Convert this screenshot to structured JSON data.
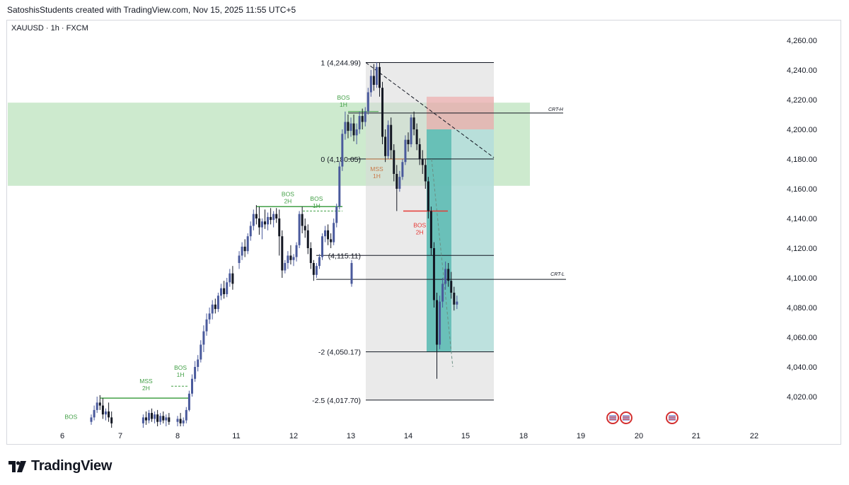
{
  "header": {
    "text": "SatoshisStudents created with TradingView.com, Nov 15, 2025 11:55 UTC+5"
  },
  "symbol": {
    "text": "XAUUSD · 1h · FXCM"
  },
  "footer": {
    "brand": "TradingView"
  },
  "colors": {
    "bull": "#4a5a9c",
    "bear": "#131722",
    "zone_green": "#b2dfb4",
    "fib_box": "#d9d9d9",
    "target_teal": "#26a69a",
    "stop_red": "#ef9a9a",
    "bos_green": "#43a047",
    "bos_red": "#e53935",
    "mss_orange": "#c97a4a"
  },
  "chart_data": {
    "type": "candlestick",
    "symbol": "XAUUSD",
    "timeframe": "1h",
    "exchange": "FXCM",
    "x_ticks": [
      "6",
      "7",
      "8",
      "11",
      "12",
      "13",
      "14",
      "15",
      "18",
      "19",
      "20",
      "21",
      "22"
    ],
    "y_ticks": [
      "4,020.00",
      "4,040.00",
      "4,060.00",
      "4,080.00",
      "4,100.00",
      "4,120.00",
      "4,140.00",
      "4,160.00",
      "4,180.00",
      "4,200.00",
      "4,220.00",
      "4,240.00",
      "4,260.00"
    ],
    "ylim": [
      4010,
      4270
    ],
    "xlim": [
      5.3,
      22.7
    ],
    "candles": [
      {
        "t": 6.5,
        "o": 4003,
        "h": 4008,
        "c": 4006,
        "l": 4001
      },
      {
        "t": 6.55,
        "o": 4006,
        "h": 4014,
        "c": 4011,
        "l": 4004
      },
      {
        "t": 6.6,
        "o": 4011,
        "h": 4020,
        "c": 4016,
        "l": 4009
      },
      {
        "t": 6.65,
        "o": 4016,
        "h": 4021,
        "c": 4014,
        "l": 4011
      },
      {
        "t": 6.7,
        "o": 4014,
        "h": 4019,
        "c": 4008,
        "l": 4005
      },
      {
        "t": 6.75,
        "o": 4008,
        "h": 4012,
        "c": 4010,
        "l": 4004
      },
      {
        "t": 6.8,
        "o": 4010,
        "h": 4016,
        "c": 4006,
        "l": 4003
      },
      {
        "t": 6.85,
        "o": 4006,
        "h": 4010,
        "c": 4002,
        "l": 3999
      },
      {
        "t": 7.4,
        "o": 4002,
        "h": 4008,
        "c": 4006,
        "l": 3999
      },
      {
        "t": 7.45,
        "o": 4006,
        "h": 4010,
        "c": 4004,
        "l": 4001
      },
      {
        "t": 7.5,
        "o": 4004,
        "h": 4011,
        "c": 4009,
        "l": 4002
      },
      {
        "t": 7.55,
        "o": 4009,
        "h": 4012,
        "c": 4005,
        "l": 4003
      },
      {
        "t": 7.6,
        "o": 4005,
        "h": 4010,
        "c": 4008,
        "l": 4002
      },
      {
        "t": 7.65,
        "o": 4008,
        "h": 4011,
        "c": 4003,
        "l": 4000
      },
      {
        "t": 7.7,
        "o": 4003,
        "h": 4009,
        "c": 4007,
        "l": 4001
      },
      {
        "t": 7.75,
        "o": 4007,
        "h": 4010,
        "c": 4004,
        "l": 4002
      },
      {
        "t": 7.8,
        "o": 4004,
        "h": 4008,
        "c": 4006,
        "l": 4000
      },
      {
        "t": 7.85,
        "o": 4006,
        "h": 4009,
        "c": 4003,
        "l": 4001
      },
      {
        "t": 8.0,
        "o": 4003,
        "h": 4007,
        "c": 4005,
        "l": 4000
      },
      {
        "t": 8.05,
        "o": 4005,
        "h": 4009,
        "c": 4002,
        "l": 4000
      },
      {
        "t": 8.1,
        "o": 4002,
        "h": 4006,
        "c": 4004,
        "l": 4000
      },
      {
        "t": 8.15,
        "o": 4004,
        "h": 4013,
        "c": 4011,
        "l": 4002
      },
      {
        "t": 8.2,
        "o": 4011,
        "h": 4024,
        "c": 4022,
        "l": 4010
      },
      {
        "t": 8.25,
        "o": 4022,
        "h": 4035,
        "c": 4032,
        "l": 4020
      },
      {
        "t": 8.3,
        "o": 4032,
        "h": 4044,
        "c": 4040,
        "l": 4030
      },
      {
        "t": 8.35,
        "o": 4040,
        "h": 4048,
        "c": 4045,
        "l": 4037
      },
      {
        "t": 8.4,
        "o": 4045,
        "h": 4058,
        "c": 4055,
        "l": 4043
      },
      {
        "t": 8.45,
        "o": 4055,
        "h": 4068,
        "c": 4064,
        "l": 4050
      },
      {
        "t": 8.5,
        "o": 4064,
        "h": 4076,
        "c": 4072,
        "l": 4061
      },
      {
        "t": 8.55,
        "o": 4072,
        "h": 4080,
        "c": 4076,
        "l": 4069
      },
      {
        "t": 8.6,
        "o": 4076,
        "h": 4085,
        "c": 4082,
        "l": 4072
      },
      {
        "t": 8.65,
        "o": 4082,
        "h": 4086,
        "c": 4079,
        "l": 4076
      },
      {
        "t": 8.7,
        "o": 4079,
        "h": 4090,
        "c": 4088,
        "l": 4077
      },
      {
        "t": 8.75,
        "o": 4088,
        "h": 4096,
        "c": 4093,
        "l": 4085
      },
      {
        "t": 8.8,
        "o": 4093,
        "h": 4098,
        "c": 4089,
        "l": 4086
      },
      {
        "t": 8.85,
        "o": 4089,
        "h": 4100,
        "c": 4097,
        "l": 4087
      },
      {
        "t": 8.9,
        "o": 4097,
        "h": 4106,
        "c": 4103,
        "l": 4094
      },
      {
        "t": 8.95,
        "o": 4103,
        "h": 4108,
        "c": 4096,
        "l": 4092
      },
      {
        "t": 9.0,
        "o": 4096,
        "h": 4112,
        "c": 4110,
        "l": 4094
      },
      {
        "t": 9.05,
        "o": 4110,
        "h": 4118,
        "c": 4115,
        "l": 4106
      },
      {
        "t": 9.1,
        "o": 4115,
        "h": 4124,
        "c": 4121,
        "l": 4112
      },
      {
        "t": 9.15,
        "o": 4121,
        "h": 4126,
        "c": 4118,
        "l": 4114
      },
      {
        "t": 9.2,
        "o": 4118,
        "h": 4130,
        "c": 4128,
        "l": 4116
      },
      {
        "t": 9.25,
        "o": 4128,
        "h": 4138,
        "c": 4135,
        "l": 4125
      },
      {
        "t": 9.3,
        "o": 4135,
        "h": 4146,
        "c": 4143,
        "l": 4132
      },
      {
        "t": 9.35,
        "o": 4143,
        "h": 4149,
        "c": 4140,
        "l": 4136
      },
      {
        "t": 9.4,
        "o": 4140,
        "h": 4148,
        "c": 4134,
        "l": 4129
      },
      {
        "t": 9.45,
        "o": 4134,
        "h": 4140,
        "c": 4138,
        "l": 4126
      },
      {
        "t": 9.5,
        "o": 4138,
        "h": 4146,
        "c": 4136,
        "l": 4133
      },
      {
        "t": 9.55,
        "o": 4136,
        "h": 4144,
        "c": 4141,
        "l": 4132
      },
      {
        "t": 9.6,
        "o": 4141,
        "h": 4147,
        "c": 4139,
        "l": 4136
      },
      {
        "t": 9.65,
        "o": 4139,
        "h": 4145,
        "c": 4143,
        "l": 4134
      },
      {
        "t": 9.7,
        "o": 4143,
        "h": 4147,
        "c": 4140,
        "l": 4137
      },
      {
        "t": 9.75,
        "o": 4140,
        "h": 4146,
        "c": 4128,
        "l": 4115
      },
      {
        "t": 9.8,
        "o": 4128,
        "h": 4132,
        "c": 4105,
        "l": 4100
      },
      {
        "t": 9.85,
        "o": 4105,
        "h": 4112,
        "c": 4110,
        "l": 4103
      },
      {
        "t": 9.9,
        "o": 4110,
        "h": 4118,
        "c": 4115,
        "l": 4106
      },
      {
        "t": 9.95,
        "o": 4115,
        "h": 4122,
        "c": 4112,
        "l": 4109
      },
      {
        "t": 10.0,
        "o": 4112,
        "h": 4116,
        "c": 4114,
        "l": 4108
      },
      {
        "t": 10.05,
        "o": 4114,
        "h": 4124,
        "c": 4122,
        "l": 4111
      },
      {
        "t": 10.1,
        "o": 4122,
        "h": 4145,
        "c": 4143,
        "l": 4120
      },
      {
        "t": 10.15,
        "o": 4143,
        "h": 4148,
        "c": 4135,
        "l": 4130
      },
      {
        "t": 10.2,
        "o": 4135,
        "h": 4140,
        "c": 4132,
        "l": 4127
      },
      {
        "t": 10.25,
        "o": 4132,
        "h": 4136,
        "c": 4120,
        "l": 4116
      },
      {
        "t": 10.3,
        "o": 4120,
        "h": 4124,
        "c": 4110,
        "l": 4106
      },
      {
        "t": 10.35,
        "o": 4110,
        "h": 4112,
        "c": 4102,
        "l": 4098
      },
      {
        "t": 10.4,
        "o": 4102,
        "h": 4110,
        "c": 4108,
        "l": 4100
      },
      {
        "t": 10.45,
        "o": 4108,
        "h": 4116,
        "c": 4114,
        "l": 4106
      },
      {
        "t": 10.5,
        "o": 4114,
        "h": 4130,
        "c": 4128,
        "l": 4112
      },
      {
        "t": 10.55,
        "o": 4128,
        "h": 4135,
        "c": 4132,
        "l": 4124
      },
      {
        "t": 10.6,
        "o": 4132,
        "h": 4136,
        "c": 4126,
        "l": 4122
      },
      {
        "t": 10.65,
        "o": 4126,
        "h": 4130,
        "c": 4124,
        "l": 4120
      },
      {
        "t": 10.7,
        "o": 4124,
        "h": 4140,
        "c": 4137,
        "l": 4122
      },
      {
        "t": 10.75,
        "o": 4137,
        "h": 4150,
        "c": 4148,
        "l": 4134
      },
      {
        "t": 10.8,
        "o": 4148,
        "h": 4178,
        "c": 4175,
        "l": 4146
      },
      {
        "t": 10.85,
        "o": 4175,
        "h": 4200,
        "c": 4197,
        "l": 4172
      },
      {
        "t": 10.9,
        "o": 4197,
        "h": 4212,
        "c": 4205,
        "l": 4193
      },
      {
        "t": 10.95,
        "o": 4205,
        "h": 4210,
        "c": 4199,
        "l": 4194
      },
      {
        "t": 11.0,
        "o": 4199,
        "h": 4208,
        "c": 4204,
        "l": 4195
      },
      {
        "t": 11.05,
        "o": 4204,
        "h": 4210,
        "c": 4196,
        "l": 4192
      },
      {
        "t": 11.1,
        "o": 4196,
        "h": 4204,
        "c": 4200,
        "l": 4190
      },
      {
        "t": 11.15,
        "o": 4200,
        "h": 4212,
        "c": 4209,
        "l": 4197
      },
      {
        "t": 11.2,
        "o": 4209,
        "h": 4214,
        "c": 4205,
        "l": 4200
      },
      {
        "t": 11.25,
        "o": 4205,
        "h": 4215,
        "c": 4212,
        "l": 4202
      },
      {
        "t": 11.3,
        "o": 4212,
        "h": 4228,
        "c": 4225,
        "l": 4210
      },
      {
        "t": 11.35,
        "o": 4225,
        "h": 4240,
        "c": 4236,
        "l": 4222
      },
      {
        "t": 11.4,
        "o": 4236,
        "h": 4244,
        "c": 4230,
        "l": 4226
      },
      {
        "t": 11.45,
        "o": 4230,
        "h": 4245,
        "c": 4242,
        "l": 4228
      },
      {
        "t": 11.5,
        "o": 4242,
        "h": 4245,
        "c": 4228,
        "l": 4222
      },
      {
        "t": 11.55,
        "o": 4228,
        "h": 4232,
        "c": 4195,
        "l": 4190
      },
      {
        "t": 11.6,
        "o": 4195,
        "h": 4200,
        "c": 4182,
        "l": 4178
      },
      {
        "t": 11.65,
        "o": 4182,
        "h": 4206,
        "c": 4203,
        "l": 4180
      },
      {
        "t": 11.7,
        "o": 4203,
        "h": 4208,
        "c": 4186,
        "l": 4180
      },
      {
        "t": 11.75,
        "o": 4186,
        "h": 4190,
        "c": 4170,
        "l": 4165
      },
      {
        "t": 11.8,
        "o": 4170,
        "h": 4176,
        "c": 4160,
        "l": 4145
      },
      {
        "t": 11.85,
        "o": 4160,
        "h": 4172,
        "c": 4168,
        "l": 4158
      },
      {
        "t": 11.9,
        "o": 4168,
        "h": 4180,
        "c": 4178,
        "l": 4166
      },
      {
        "t": 11.95,
        "o": 4178,
        "h": 4196,
        "c": 4193,
        "l": 4176
      },
      {
        "t": 12.0,
        "o": 4193,
        "h": 4198,
        "c": 4190,
        "l": 4185
      },
      {
        "t": 12.05,
        "o": 4190,
        "h": 4210,
        "c": 4208,
        "l": 4188
      },
      {
        "t": 12.1,
        "o": 4208,
        "h": 4212,
        "c": 4200,
        "l": 4196
      },
      {
        "t": 12.15,
        "o": 4200,
        "h": 4204,
        "c": 4190,
        "l": 4186
      },
      {
        "t": 12.2,
        "o": 4190,
        "h": 4194,
        "c": 4180,
        "l": 4176
      },
      {
        "t": 12.25,
        "o": 4180,
        "h": 4186,
        "c": 4176,
        "l": 4170
      },
      {
        "t": 12.3,
        "o": 4176,
        "h": 4180,
        "c": 4165,
        "l": 4160
      },
      {
        "t": 12.35,
        "o": 4165,
        "h": 4168,
        "c": 4145,
        "l": 4140
      },
      {
        "t": 12.4,
        "o": 4145,
        "h": 4148,
        "c": 4120,
        "l": 4115
      },
      {
        "t": 12.45,
        "o": 4120,
        "h": 4124,
        "c": 4085,
        "l": 4080
      },
      {
        "t": 12.5,
        "o": 4085,
        "h": 4090,
        "c": 4055,
        "l": 4032
      },
      {
        "t": 12.55,
        "o": 4055,
        "h": 4088,
        "c": 4084,
        "l": 4052
      },
      {
        "t": 12.6,
        "o": 4084,
        "h": 4100,
        "c": 4096,
        "l": 4080
      },
      {
        "t": 12.65,
        "o": 4096,
        "h": 4111,
        "c": 4106,
        "l": 4092
      },
      {
        "t": 12.7,
        "o": 4106,
        "h": 4110,
        "c": 4098,
        "l": 4094
      },
      {
        "t": 12.75,
        "o": 4098,
        "h": 4104,
        "c": 4090,
        "l": 4086
      },
      {
        "t": 12.8,
        "o": 4090,
        "h": 4094,
        "c": 4082,
        "l": 4078
      },
      {
        "t": 12.85,
        "o": 4082,
        "h": 4088,
        "c": 4084,
        "l": 4079
      }
    ],
    "fib_levels": [
      {
        "label": "1 (4,244.99)",
        "price": 4244.99
      },
      {
        "label": "0 (4,180.05)",
        "price": 4180.05
      },
      {
        "label": "(4,115.11)",
        "price": 4115.11
      },
      {
        "label": "-2 (4,050.17)",
        "price": 4050.17
      },
      {
        "label": "-2.5 (4,017.70)",
        "price": 4017.7
      }
    ],
    "crt_labels": [
      {
        "label": "CRT-H",
        "price": 4211
      },
      {
        "label": "CRT-L",
        "price": 4099
      }
    ],
    "structure_labels": [
      {
        "text": "BOS",
        "sub": "",
        "t": 6.15,
        "price": 4005,
        "color": "green"
      },
      {
        "text": "MSS",
        "sub": "2H",
        "t": 7.45,
        "price": 4029,
        "color": "green"
      },
      {
        "text": "BOS",
        "sub": "1H",
        "t": 8.05,
        "price": 4038,
        "color": "green"
      },
      {
        "text": "BOS",
        "sub": "2H",
        "t": 9.9,
        "price": 4155,
        "color": "green"
      },
      {
        "text": "BOS",
        "sub": "1H",
        "t": 10.4,
        "price": 4152,
        "color": "green"
      },
      {
        "text": "BOS",
        "sub": "1H",
        "t": 10.87,
        "price": 4220,
        "color": "green"
      },
      {
        "text": "MSS",
        "sub": "1H",
        "t": 11.45,
        "price": 4172,
        "color": "orange"
      },
      {
        "text": "BOS",
        "sub": "2H",
        "t": 12.2,
        "price": 4134,
        "color": "red"
      }
    ],
    "event_icons": [
      19.55,
      19.78,
      20.58
    ]
  }
}
